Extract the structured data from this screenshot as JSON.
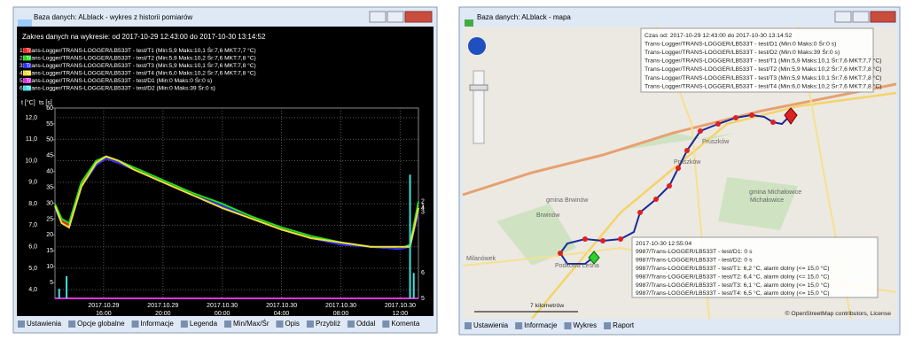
{
  "chart_window": {
    "title": "Baza danych: ALblack - wykres z historii pomiarów",
    "range_text": "Zakres danych na wykresie: od 2017-10-29 12:43:00 do 2017-10-30 13:14:52",
    "chart_data": {
      "type": "line",
      "y_label": "t [°C]",
      "y2_label": "ts [s]",
      "x": [
        "2017-10-29T12:43",
        "2017-10-29T13:10",
        "2017-10-29T13:40",
        "2017-10-29T14:30",
        "2017-10-29T15:30",
        "2017-10-29T16:10",
        "2017-10-29T17:00",
        "2017-10-29T18:00",
        "2017-10-29T20:00",
        "2017-10-29T22:00",
        "2017-10-30T00:00",
        "2017-10-30T02:00",
        "2017-10-30T04:00",
        "2017-10-30T06:00",
        "2017-10-30T08:00",
        "2017-10-30T10:00",
        "2017-10-30T12:00",
        "2017-10-30T12:40",
        "2017-10-30T13:14"
      ],
      "xlim": [
        "2017-10-29T12:43",
        "2017-10-30T13:14"
      ],
      "xticks": [
        {
          "value": "2017-10-29T16:00",
          "label": [
            "2017.10.29",
            "16:00"
          ]
        },
        {
          "value": "2017-10-29T20:00",
          "label": [
            "2017.10.29",
            "20:00"
          ]
        },
        {
          "value": "2017-10-30T00:00",
          "label": [
            "2017.10.30",
            "00:00"
          ]
        },
        {
          "value": "2017-10-30T04:00",
          "label": [
            "2017.10.30",
            "04:00"
          ]
        },
        {
          "value": "2017-10-30T08:00",
          "label": [
            "2017.10.30",
            "08:00"
          ]
        },
        {
          "value": "2017-10-30T12:00",
          "label": [
            "2017.10.30",
            "12:00"
          ]
        }
      ],
      "ylim": [
        3.6,
        12.45
      ],
      "yticks": [
        {
          "value": 4,
          "label": "4,0"
        },
        {
          "value": 5,
          "label": "5,0"
        },
        {
          "value": 6,
          "label": "6,0"
        },
        {
          "value": 7,
          "label": "7,0"
        },
        {
          "value": 8,
          "label": "8,0"
        },
        {
          "value": 9,
          "label": "9,0"
        },
        {
          "value": 10,
          "label": "10,0"
        },
        {
          "value": 11,
          "label": "11,0"
        },
        {
          "value": 12,
          "label": "12,0"
        }
      ],
      "y2lim": [
        0,
        60
      ],
      "y2ticks": [
        5,
        10,
        15,
        20,
        25,
        30,
        35,
        40,
        45,
        50,
        55,
        60
      ],
      "grid": true,
      "series": [
        {
          "name": "1: Trans-Logger/TRANS-LOGGER/LB533T - test/T1 (Min:5,9 Maks:10,1 Śr:7,6 MKT:7,7 °C)",
          "tag": "1",
          "color": "#ff2020",
          "values": [
            7.9,
            7.2,
            7.0,
            8.9,
            9.9,
            10.1,
            9.9,
            9.6,
            9.0,
            8.4,
            7.9,
            7.3,
            6.8,
            6.4,
            6.2,
            6.0,
            5.9,
            6.0,
            7.9
          ]
        },
        {
          "name": "2: Trans-Logger/TRANS-LOGGER/LB533T - test/T2 (Min:5,9 Maks:10,2 Śr:7,6 MKT:7,8 °C)",
          "tag": "2",
          "color": "#20e020",
          "values": [
            8.0,
            7.3,
            7.1,
            9.0,
            10.0,
            10.2,
            10.0,
            9.7,
            9.1,
            8.5,
            8.0,
            7.4,
            6.9,
            6.5,
            6.2,
            6.0,
            5.9,
            6.1,
            8.1
          ]
        },
        {
          "name": "3: Trans-Logger/TRANS-LOGGER/LB533T - test/T3 (Min:5,9 Maks:10,1 Śr:7,6 MKT:7,8 °C)",
          "tag": "3",
          "color": "#3030ff",
          "values": [
            7.8,
            7.1,
            6.9,
            8.8,
            9.8,
            10.1,
            9.9,
            9.6,
            9.0,
            8.4,
            7.9,
            7.3,
            6.8,
            6.4,
            6.1,
            6.0,
            5.9,
            6.0,
            7.6
          ]
        },
        {
          "name": "4: Trans-Logger/TRANS-LOGGER/LB533T - test/T4 (Min:6,0 Maks:10,2 Śr:7,6 MKT:7,8 °C)",
          "tag": "4",
          "color": "#f0e030",
          "values": [
            7.9,
            7.1,
            6.9,
            8.8,
            9.9,
            10.2,
            10.0,
            9.6,
            9.0,
            8.4,
            7.8,
            7.3,
            6.8,
            6.4,
            6.2,
            6.0,
            6.0,
            6.0,
            7.8
          ]
        },
        {
          "name": "5: Trans-Logger/TRANS-LOGGER/LB533T - test/D1 (Min:0 Maks:0 Śr:0 s)",
          "tag": "5",
          "color": "#e030e0",
          "axis": "y2",
          "x": [
            "2017-10-29T12:43",
            "2017-10-30T13:14"
          ],
          "values": [
            0,
            0
          ]
        },
        {
          "name": "6: Trans-Logger/TRANS-LOGGER/LB533T - test/D2 (Min:0 Maks:39 Śr:0 s)",
          "tag": "6",
          "color": "#40e0e0",
          "axis": "y2",
          "style": "spikes",
          "x": [
            "2017-10-29T13:00",
            "2017-10-29T13:30",
            "2017-10-30T12:40",
            "2017-10-30T12:55"
          ],
          "values": [
            3,
            7,
            39,
            8
          ]
        }
      ]
    },
    "toolbar": [
      "Ustawienia",
      "Opcje globalne",
      "Informacje",
      "Legenda",
      "Min/Max/Śr",
      "Opis",
      "Przybliż",
      "Oddal",
      "Komenta"
    ]
  },
  "map_window": {
    "title": "Baza danych: ALblack - mapa",
    "info_box": {
      "header": "Czas od: 2017-10-29 12:43:00 do 2017-10-30 13:14:52",
      "lines": [
        "Trans-Logger/TRANS-LOGGER/LB533T - test/D1 (Min:0 Maks:0 Śr:0 s)",
        "Trans-Logger/TRANS-LOGGER/LB533T - test/D2 (Min:0 Maks:39 Śr:0 s)",
        "Trans-Logger/TRANS-LOGGER/LB533T - test/T1 (Min:5,9 Maks:10,1 Śr:7,6 MKT:7,7 °C)",
        "Trans-Logger/TRANS-LOGGER/LB533T - test/T2 (Min:5,9 Maks:10,2 Śr:7,6 MKT:7,8 °C)",
        "Trans-Logger/TRANS-LOGGER/LB533T - test/T3 (Min:5,9 Maks:10,1 Śr:7,6 MKT:7,8 °C)",
        "Trans-Logger/TRANS-LOGGER/LB533T - test/T4 (Min:6,0 Maks:10,2 Śr:7,6 MKT:7,8 °C)"
      ]
    },
    "point_box": {
      "header": "2017-10-30 12:55:04",
      "lines": [
        "9987/Trans-LOGGER/LB533T - test/D1: 0 s",
        "9987/Trans-LOGGER/LB533T - test/D2: 0 s",
        "9987/Trans-LOGGER/LB533T - test/T1: 6,2 °C, alarm dolny (<= 15,0 °C)",
        "9987/Trans-LOGGER/LB533T - test/T2: 6,4 °C, alarm dolny (<= 15,0 °C)",
        "9987/Trans-LOGGER/LB533T - test/T3: 6,1 °C, alarm dolny (<= 15,0 °C)",
        "9987/Trans-LOGGER/LB533T - test/T4: 6,5 °C, alarm dolny (<= 15,0 °C)"
      ]
    },
    "places": [
      "Pruszków",
      "Pruszków",
      "gmina Brwinów",
      "Brwinów",
      "gmina Michałowice",
      "Michałowice",
      "Milanówek",
      "Podkowa Leśna"
    ],
    "scale": "7 kilometrów",
    "attribution": "© OpenStreetMap contributors, License",
    "toolbar": [
      "Ustawienia",
      "Informacje",
      "Wykres",
      "Raport"
    ]
  }
}
